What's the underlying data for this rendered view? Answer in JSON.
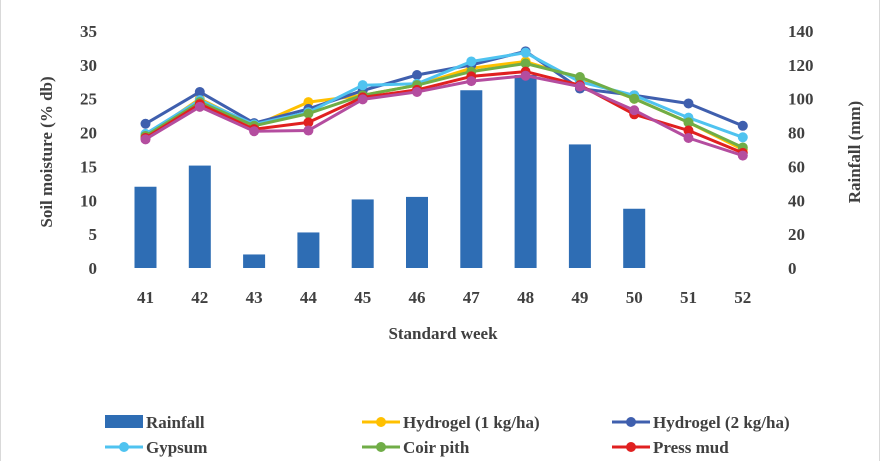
{
  "chart_data": {
    "type": "bar+line",
    "title": "",
    "xlabel": "Standard week",
    "ylabel_left": "Soil moisture (% db)",
    "ylabel_right": "Rainfall (mm)",
    "categories": [
      "41",
      "42",
      "43",
      "44",
      "45",
      "46",
      "47",
      "48",
      "49",
      "50",
      "51",
      "52"
    ],
    "ylim_left": [
      0,
      35
    ],
    "yticks_left": [
      "0",
      "5",
      "10",
      "15",
      "20",
      "25",
      "30",
      "35"
    ],
    "ylim_right": [
      0,
      140
    ],
    "yticks_right": [
      "0",
      "20",
      "40",
      "60",
      "80",
      "100",
      "120",
      "140"
    ],
    "grid": false,
    "legend_position": "bottom",
    "bar_series": {
      "name": "Rainfall",
      "axis": "right",
      "color": "#2e6db4",
      "values": [
        48,
        60.5,
        8,
        21,
        40.5,
        42,
        105,
        114,
        73,
        35,
        0,
        0
      ]
    },
    "line_series": [
      {
        "name": "Hydrogel (1 kg/ha)",
        "color": "#ffc000",
        "values": [
          19.5,
          25.0,
          21.0,
          24.5,
          25.5,
          27.0,
          29.5,
          30.5,
          28.0,
          25.0,
          21.5,
          17.5
        ]
      },
      {
        "name": "Hydrogel (2 kg/ha)",
        "color": "#3f5fae",
        "values": [
          21.3,
          26.0,
          21.4,
          23.5,
          26.2,
          28.5,
          30.0,
          32.0,
          26.5,
          25.5,
          24.3,
          21.0
        ]
      },
      {
        "name": "Gypsum",
        "color": "#4fc3f0",
        "values": [
          19.8,
          24.8,
          21.2,
          23.0,
          27.0,
          27.2,
          30.5,
          31.8,
          27.5,
          25.5,
          22.2,
          19.3
        ]
      },
      {
        "name": "Coir pith",
        "color": "#70ad47",
        "values": [
          19.5,
          24.5,
          21.0,
          22.8,
          25.5,
          27.0,
          29.0,
          30.2,
          28.2,
          25.0,
          21.5,
          17.8
        ]
      },
      {
        "name": "Press mud",
        "color": "#e02020",
        "values": [
          19.2,
          24.2,
          20.5,
          21.5,
          25.2,
          26.3,
          28.3,
          29.0,
          27.0,
          22.7,
          20.3,
          17.0
        ]
      },
      {
        "name": "",
        "color": "#b44d9f",
        "values": [
          19.0,
          23.8,
          20.2,
          20.3,
          24.9,
          26.0,
          27.6,
          28.4,
          26.8,
          23.3,
          19.2,
          16.6
        ]
      }
    ],
    "legend_items": [
      {
        "label": "Rainfall",
        "kind": "bar",
        "color": "#2e6db4"
      },
      {
        "label": "Hydrogel (1 kg/ha)",
        "kind": "line",
        "color": "#ffc000"
      },
      {
        "label": "Hydrogel (2 kg/ha)",
        "kind": "line",
        "color": "#3f5fae"
      },
      {
        "label": "Gypsum",
        "kind": "line",
        "color": "#4fc3f0"
      },
      {
        "label": "Coir pith",
        "kind": "line",
        "color": "#70ad47"
      },
      {
        "label": "Press mud",
        "kind": "line",
        "color": "#e02020"
      }
    ]
  }
}
